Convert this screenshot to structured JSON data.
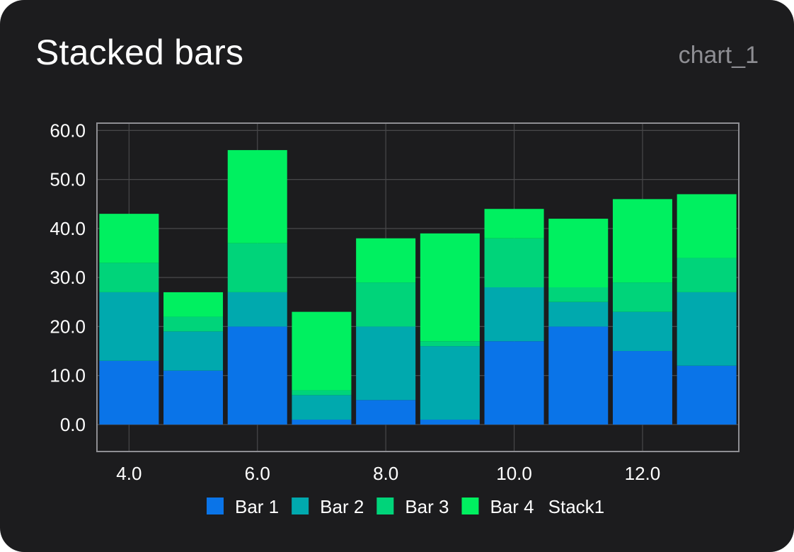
{
  "card": {
    "title": "Stacked bars",
    "chart_id": "chart_1"
  },
  "colors": {
    "background": "#1c1c1e",
    "grid": "#48484a",
    "axis": "#8e8e93",
    "text": "#ffffff",
    "muted": "#8e8e93"
  },
  "chart_data": {
    "type": "bar",
    "stacked": true,
    "x": [
      4,
      5,
      6,
      7,
      8,
      9,
      10,
      11,
      12,
      13
    ],
    "xlim": [
      3.5,
      13.5
    ],
    "ylim": [
      -5.5,
      61.5
    ],
    "x_ticks": [
      4,
      6,
      8,
      10,
      12
    ],
    "x_tick_labels": [
      "4.0",
      "6.0",
      "8.0",
      "10.0",
      "12.0"
    ],
    "y_ticks": [
      0,
      10,
      20,
      30,
      40,
      50,
      60
    ],
    "y_tick_labels": [
      "0.0",
      "10.0",
      "20.0",
      "30.0",
      "40.0",
      "50.0",
      "60.0"
    ],
    "grid": true,
    "legend_position": "bottom",
    "legend_suffix": "Stack1",
    "series": [
      {
        "name": "Bar 1",
        "color": "#0a74e8",
        "values": [
          13,
          11,
          20,
          1,
          5,
          1,
          17,
          20,
          15,
          12
        ]
      },
      {
        "name": "Bar 2",
        "color": "#00a9ae",
        "values": [
          14,
          8,
          7,
          5,
          15,
          15,
          11,
          5,
          8,
          15
        ]
      },
      {
        "name": "Bar 3",
        "color": "#00d47a",
        "values": [
          6,
          3,
          10,
          1,
          9,
          1,
          10,
          3,
          6,
          7
        ]
      },
      {
        "name": "Bar 4",
        "color": "#00f060",
        "values": [
          10,
          5,
          19,
          16,
          9,
          22,
          6,
          14,
          17,
          13
        ]
      }
    ]
  }
}
